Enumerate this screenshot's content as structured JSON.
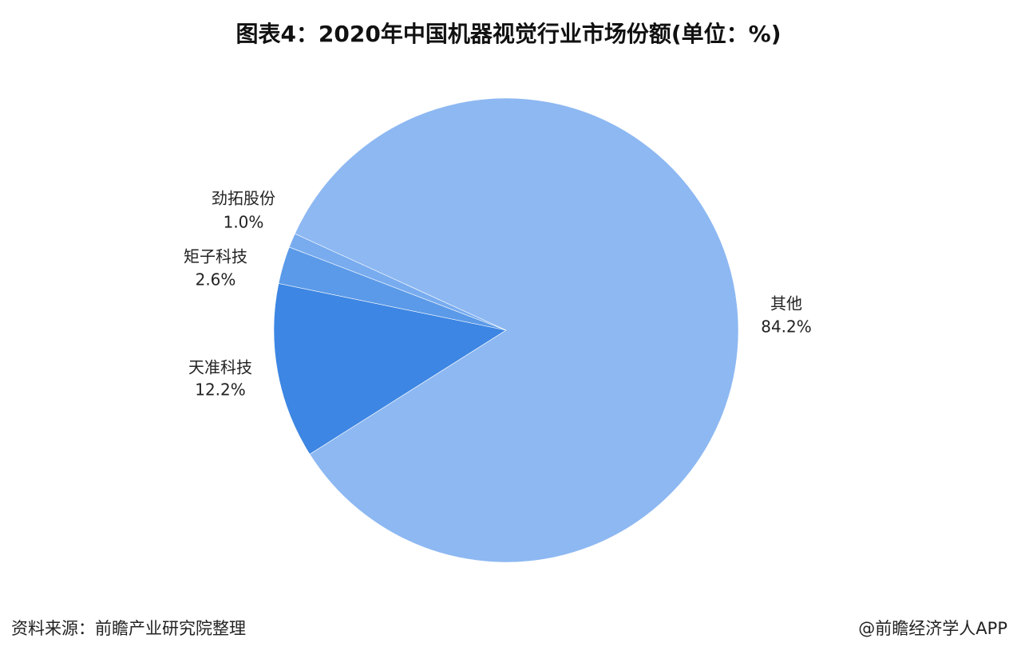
{
  "chart_data": {
    "type": "pie",
    "title": "图表4：2020年中国机器视觉行业市场份额(单位：%)",
    "categories": [
      "天准科技",
      "矩子科技",
      "劲拓股份",
      "其他"
    ],
    "values": [
      12.2,
      2.6,
      1.0,
      84.2
    ],
    "value_labels": [
      "12.2%",
      "2.6%",
      "1.0%",
      "84.2%"
    ],
    "colors": [
      "#3d86e3",
      "#5b9ae8",
      "#78acef",
      "#8db8f2"
    ],
    "source": "资料来源：前瞻产业研究院整理",
    "credit": "@前瞻经济学人APP"
  }
}
